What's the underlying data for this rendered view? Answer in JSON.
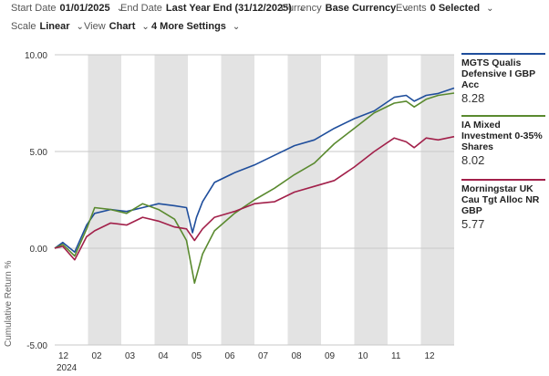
{
  "toolbar": {
    "start_date": {
      "label": "Start Date",
      "value": "01/01/2025"
    },
    "end_date": {
      "label": "End Date",
      "value": "Last Year End (31/12/2025)"
    },
    "currency": {
      "label": "Currency",
      "value": "Base Currency"
    },
    "events": {
      "label": "Events",
      "value": "0 Selected"
    },
    "scale": {
      "label": "Scale",
      "value": "Linear"
    },
    "view": {
      "label": "View",
      "value": "Chart"
    },
    "more_settings": "4 More Settings"
  },
  "chart_data": {
    "type": "line",
    "ylabel": "Cumulative Return %",
    "ylim": [
      -5,
      10
    ],
    "yticks": [
      "10.00",
      "5.00",
      "0.00",
      "-5.00"
    ],
    "x_tick_labels": [
      "12",
      "02",
      "03",
      "04",
      "05",
      "06",
      "07",
      "08",
      "09",
      "10",
      "11",
      "12"
    ],
    "x_year_label": "2024",
    "grid": true,
    "series": [
      {
        "name": "MGTS Qualis Defensive I GBP Acc",
        "end_value": "8.28",
        "color": "#1f4e9c",
        "x": [
          0,
          0.02,
          0.05,
          0.08,
          0.1,
          0.14,
          0.18,
          0.22,
          0.26,
          0.3,
          0.33,
          0.345,
          0.355,
          0.37,
          0.4,
          0.45,
          0.5,
          0.55,
          0.6,
          0.65,
          0.7,
          0.75,
          0.8,
          0.85,
          0.88,
          0.9,
          0.93,
          0.96,
          1.0
        ],
        "values": [
          0,
          0.3,
          -0.2,
          1.2,
          1.8,
          2.0,
          1.9,
          2.1,
          2.3,
          2.2,
          2.1,
          0.8,
          1.6,
          2.4,
          3.4,
          3.9,
          4.3,
          4.8,
          5.3,
          5.6,
          6.2,
          6.7,
          7.1,
          7.8,
          7.9,
          7.6,
          7.9,
          8.0,
          8.28
        ]
      },
      {
        "name": "IA Mixed Investment 0-35% Shares",
        "end_value": "8.02",
        "color": "#5a8a2f",
        "x": [
          0,
          0.02,
          0.05,
          0.08,
          0.1,
          0.14,
          0.18,
          0.22,
          0.26,
          0.3,
          0.33,
          0.35,
          0.37,
          0.4,
          0.45,
          0.5,
          0.55,
          0.6,
          0.65,
          0.7,
          0.75,
          0.8,
          0.85,
          0.88,
          0.9,
          0.93,
          0.96,
          1.0
        ],
        "values": [
          0,
          0.2,
          -0.4,
          1.0,
          2.1,
          2.0,
          1.8,
          2.3,
          2.0,
          1.5,
          0.4,
          -1.8,
          -0.3,
          0.9,
          1.8,
          2.5,
          3.1,
          3.8,
          4.4,
          5.4,
          6.2,
          7.0,
          7.5,
          7.6,
          7.3,
          7.7,
          7.9,
          8.02
        ]
      },
      {
        "name": "Morningstar UK Cau Tgt Alloc NR GBP",
        "end_value": "5.77",
        "color": "#a2204a",
        "x": [
          0,
          0.02,
          0.05,
          0.08,
          0.1,
          0.14,
          0.18,
          0.22,
          0.26,
          0.3,
          0.33,
          0.35,
          0.37,
          0.4,
          0.45,
          0.5,
          0.55,
          0.6,
          0.65,
          0.7,
          0.75,
          0.8,
          0.85,
          0.88,
          0.9,
          0.93,
          0.96,
          1.0
        ],
        "values": [
          0,
          0.1,
          -0.6,
          0.6,
          0.9,
          1.3,
          1.2,
          1.6,
          1.4,
          1.1,
          1.0,
          0.4,
          1.0,
          1.6,
          1.9,
          2.3,
          2.4,
          2.9,
          3.2,
          3.5,
          4.2,
          5.0,
          5.7,
          5.5,
          5.2,
          5.7,
          5.6,
          5.77
        ]
      }
    ]
  }
}
